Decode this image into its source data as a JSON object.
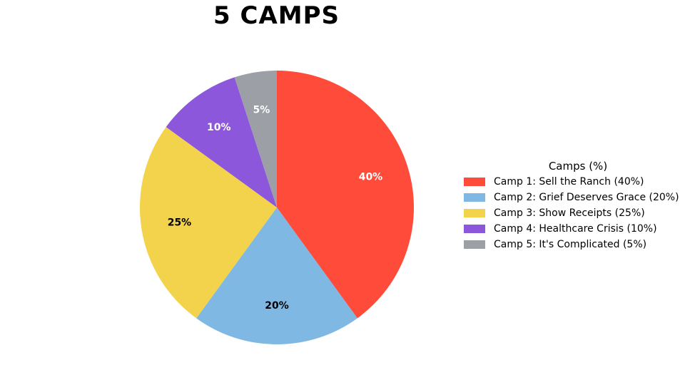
{
  "chart_data": {
    "type": "pie",
    "title": "5 CAMPS",
    "legend_title": "Camps (%)",
    "legend_placement": "right",
    "start_angle_deg": 90,
    "direction": "clockwise",
    "slices": [
      {
        "legend_label": "Camp 1: Sell the Ranch (40%)",
        "value": 40,
        "pct_label": "40%",
        "color": "#FF4B3A",
        "label_color": "#ffffff"
      },
      {
        "legend_label": "Camp 2: Grief Deserves Grace (20%)",
        "value": 20,
        "pct_label": "20%",
        "color": "#80B8E4",
        "label_color": "#000000"
      },
      {
        "legend_label": "Camp 3: Show Receipts (25%)",
        "value": 25,
        "pct_label": "25%",
        "color": "#F3D34C",
        "label_color": "#000000"
      },
      {
        "legend_label": "Camp 4: Healthcare Crisis (10%)",
        "value": 10,
        "pct_label": "10%",
        "color": "#8D57DB",
        "label_color": "#ffffff"
      },
      {
        "legend_label": "Camp 5: It's Complicated (5%)",
        "value": 5,
        "pct_label": "5%",
        "color": "#9CA0A6",
        "label_color": "#ffffff"
      }
    ]
  }
}
